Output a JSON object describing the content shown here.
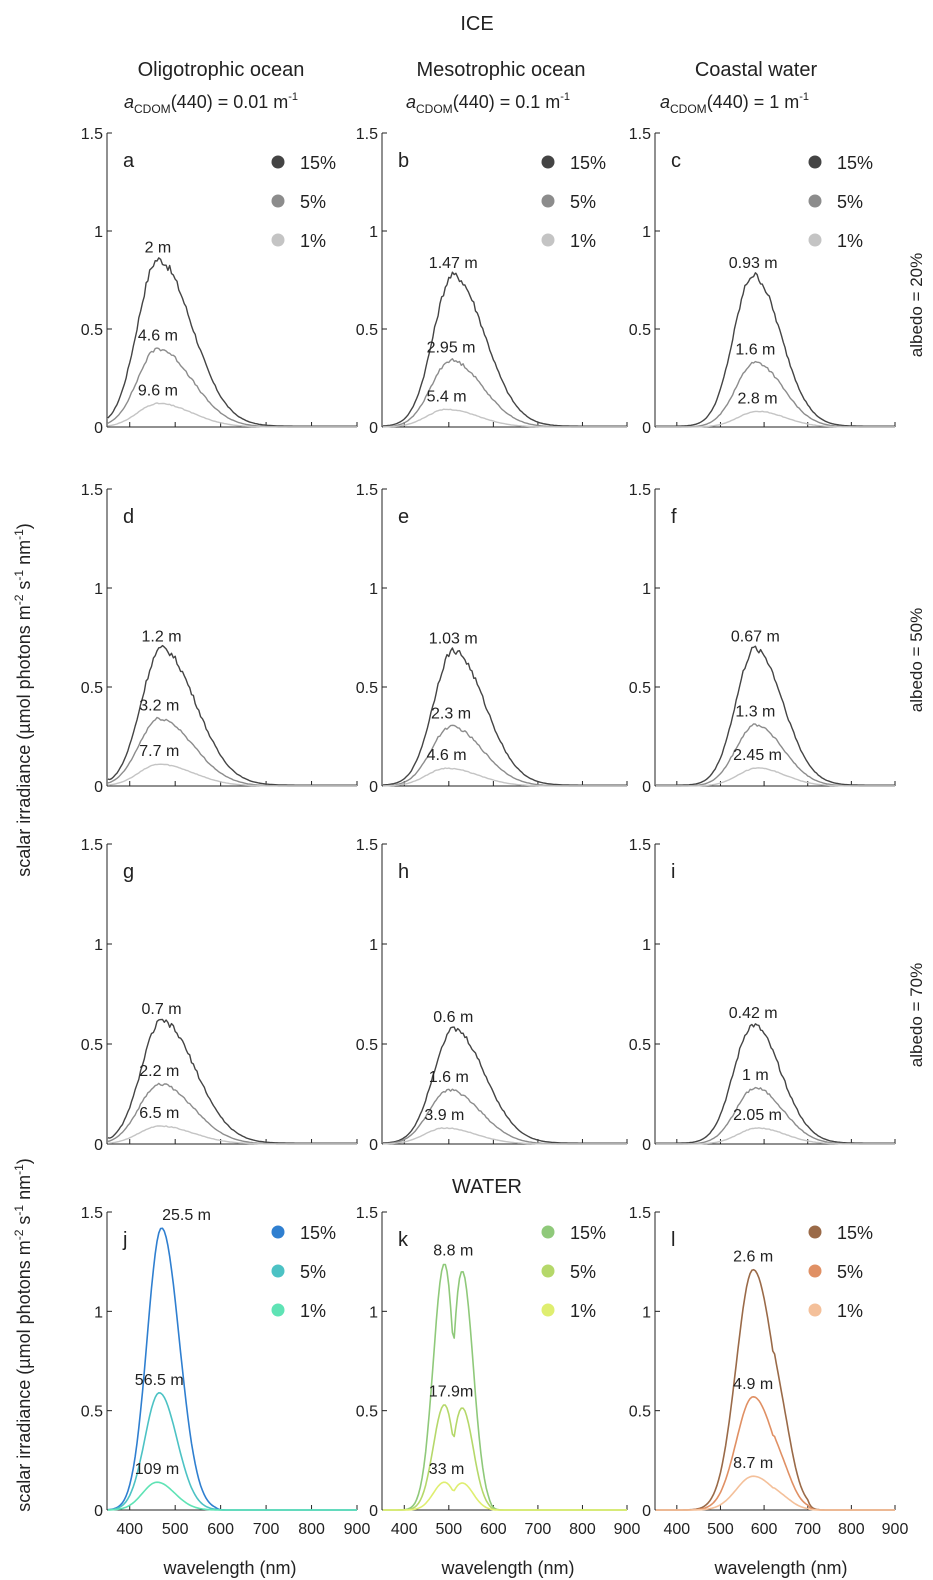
{
  "figure": {
    "ice_title": "ICE",
    "water_title": "WATER",
    "columns": [
      {
        "title": "Oligotrophic ocean",
        "cdom_symbol": "a",
        "cdom_sub": "CDOM",
        "cdom_rest": "(440) = 0.01 m",
        "cdom_exp": "-1"
      },
      {
        "title": "Mesotrophic ocean",
        "cdom_symbol": "a",
        "cdom_sub": "CDOM",
        "cdom_rest": "(440) = 0.1 m",
        "cdom_exp": "-1"
      },
      {
        "title": "Coastal water",
        "cdom_symbol": "a",
        "cdom_sub": "CDOM",
        "cdom_rest": "(440) = 1 m",
        "cdom_exp": "-1"
      }
    ],
    "row_labels": [
      "albedo = 20%",
      "albedo = 50%",
      "albedo = 70%"
    ],
    "ylabel": {
      "main": "scalar irradiance (µmol photons m",
      "e1": "-2",
      "mid": " s",
      "e2": "-1",
      "mid2": " nm",
      "e3": "-1",
      "end": ")"
    },
    "xlabel": "wavelength (nm)",
    "legend_labels": [
      "15%",
      "5%",
      "1%"
    ],
    "ice_colors": [
      "#444444",
      "#8c8c8c",
      "#c4c4c4"
    ],
    "water_colors": [
      [
        "#2f7fd0",
        "#4cc2c4",
        "#5fe3b5"
      ],
      [
        "#8fc97a",
        "#b5d86a",
        "#dfee70"
      ],
      [
        "#9a6a48",
        "#e09064",
        "#f4c09a"
      ]
    ]
  },
  "chart_data": [
    {
      "id": "a",
      "type": "line",
      "xlim": [
        350,
        900
      ],
      "ylim": [
        0,
        1.5
      ],
      "peaks": [
        462,
        462,
        462
      ],
      "amps": [
        0.85,
        0.4,
        0.12
      ],
      "depth_labels": [
        "2 m",
        "4.6 m",
        "9.6 m"
      ],
      "yticks": [
        0,
        0.5,
        1,
        1.5
      ],
      "ytick_labels": [
        "0",
        "0.5",
        "1",
        "1.5"
      ],
      "legend": true
    },
    {
      "id": "b",
      "type": "line",
      "xlim": [
        350,
        900
      ],
      "ylim": [
        0,
        1.5
      ],
      "peaks": [
        510,
        505,
        495
      ],
      "amps": [
        0.77,
        0.34,
        0.09
      ],
      "depth_labels": [
        "1.47 m",
        "2.95 m",
        "5.4 m"
      ],
      "yticks": [
        0,
        0.5,
        1,
        1.5
      ],
      "ytick_labels": [
        "0",
        "0.5",
        "1",
        "1.5"
      ],
      "legend": true
    },
    {
      "id": "c",
      "type": "line",
      "xlim": [
        350,
        900
      ],
      "ylim": [
        0,
        1.5
      ],
      "peaks": [
        575,
        580,
        585
      ],
      "amps": [
        0.77,
        0.33,
        0.08
      ],
      "depth_labels": [
        "0.93 m",
        "1.6 m",
        "2.8 m"
      ],
      "yticks": [
        0,
        0.5,
        1,
        1.5
      ],
      "ytick_labels": [
        "0",
        "0.5",
        "1",
        "1.5"
      ],
      "legend": true
    },
    {
      "id": "d",
      "type": "line",
      "xlim": [
        350,
        900
      ],
      "ylim": [
        0,
        1.5
      ],
      "peaks": [
        470,
        465,
        465
      ],
      "amps": [
        0.69,
        0.34,
        0.11
      ],
      "depth_labels": [
        "1.2 m",
        "3.2 m",
        "7.7 m"
      ],
      "yticks": [
        0,
        0.5,
        1,
        1.5
      ],
      "ytick_labels": [
        "0",
        "0.5",
        "1",
        "1.5"
      ],
      "legend": false
    },
    {
      "id": "e",
      "type": "line",
      "xlim": [
        350,
        900
      ],
      "ylim": [
        0,
        1.5
      ],
      "peaks": [
        510,
        505,
        495
      ],
      "amps": [
        0.68,
        0.3,
        0.09
      ],
      "depth_labels": [
        "1.03 m",
        "2.3 m",
        "4.6 m"
      ],
      "yticks": [
        0,
        0.5,
        1,
        1.5
      ],
      "ytick_labels": [
        "0",
        "0.5",
        "1",
        "1.5"
      ],
      "legend": false
    },
    {
      "id": "f",
      "type": "line",
      "xlim": [
        350,
        900
      ],
      "ylim": [
        0,
        1.5
      ],
      "peaks": [
        580,
        580,
        585
      ],
      "amps": [
        0.69,
        0.31,
        0.09
      ],
      "depth_labels": [
        "0.67 m",
        "1.3 m",
        "2.45 m"
      ],
      "yticks": [
        0,
        0.5,
        1,
        1.5
      ],
      "ytick_labels": [
        "0",
        "0.5",
        "1",
        "1.5"
      ],
      "legend": false
    },
    {
      "id": "g",
      "type": "line",
      "xlim": [
        350,
        900
      ],
      "ylim": [
        0,
        1.5
      ],
      "peaks": [
        470,
        465,
        465
      ],
      "amps": [
        0.61,
        0.3,
        0.09
      ],
      "depth_labels": [
        "0.7 m",
        "2.2 m",
        "6.5 m"
      ],
      "yticks": [
        0,
        0.5,
        1,
        1.5
      ],
      "ytick_labels": [
        "0",
        "0.5",
        "1",
        "1.5"
      ],
      "legend": false
    },
    {
      "id": "h",
      "type": "line",
      "xlim": [
        350,
        900
      ],
      "ylim": [
        0,
        1.5
      ],
      "peaks": [
        510,
        500,
        490
      ],
      "amps": [
        0.57,
        0.27,
        0.08
      ],
      "depth_labels": [
        "0.6 m",
        "1.6 m",
        "3.9 m"
      ],
      "yticks": [
        0,
        0.5,
        1,
        1.5
      ],
      "ytick_labels": [
        "0",
        "0.5",
        "1",
        "1.5"
      ],
      "legend": false
    },
    {
      "id": "i",
      "type": "line",
      "xlim": [
        350,
        900
      ],
      "ylim": [
        0,
        1.5
      ],
      "peaks": [
        575,
        580,
        585
      ],
      "amps": [
        0.59,
        0.28,
        0.08
      ],
      "depth_labels": [
        "0.42 m",
        "1 m",
        "2.05 m"
      ],
      "yticks": [
        0,
        0.5,
        1,
        1.5
      ],
      "ytick_labels": [
        "0",
        "0.5",
        "1",
        "1.5"
      ],
      "legend": false
    },
    {
      "id": "j",
      "type": "line",
      "xlim": [
        350,
        900
      ],
      "ylim": [
        0,
        1.5
      ],
      "peaks": [
        470,
        465,
        460
      ],
      "amps": [
        1.42,
        0.59,
        0.14
      ],
      "depth_labels": [
        "25.5 m",
        "56.5 m",
        "109 m"
      ],
      "yticks": [
        0,
        0.5,
        1,
        1.5
      ],
      "ytick_labels": [
        "0",
        "0.5",
        "1",
        "1.5"
      ],
      "xticks": [
        400,
        500,
        600,
        700,
        800,
        900
      ],
      "xtick_labels": [
        "400",
        "500",
        "600",
        "700",
        "800",
        "900"
      ],
      "legend": true
    },
    {
      "id": "k",
      "type": "line",
      "xlim": [
        350,
        900
      ],
      "ylim": [
        0,
        1.5
      ],
      "peaks": [
        510,
        505,
        495
      ],
      "amps": [
        1.24,
        0.53,
        0.14
      ],
      "depth_labels": [
        "8.8 m",
        "17.9m",
        "33 m"
      ],
      "yticks": [
        0,
        0.5,
        1,
        1.5
      ],
      "ytick_labels": [
        "0",
        "0.5",
        "1",
        "1.5"
      ],
      "xticks": [
        400,
        500,
        600,
        700,
        800,
        900
      ],
      "xtick_labels": [
        "400",
        "500",
        "600",
        "700",
        "800",
        "900"
      ],
      "legend": true
    },
    {
      "id": "l",
      "type": "line",
      "xlim": [
        350,
        900
      ],
      "ylim": [
        0,
        1.5
      ],
      "peaks": [
        575,
        575,
        575
      ],
      "amps": [
        1.21,
        0.57,
        0.17
      ],
      "depth_labels": [
        "2.6 m",
        "4.9 m",
        "8.7 m"
      ],
      "yticks": [
        0,
        0.5,
        1,
        1.5
      ],
      "ytick_labels": [
        "0",
        "0.5",
        "1",
        "1.5"
      ],
      "xticks": [
        400,
        500,
        600,
        700,
        800,
        900
      ],
      "xtick_labels": [
        "400",
        "500",
        "600",
        "700",
        "800",
        "900"
      ],
      "legend": true
    }
  ]
}
